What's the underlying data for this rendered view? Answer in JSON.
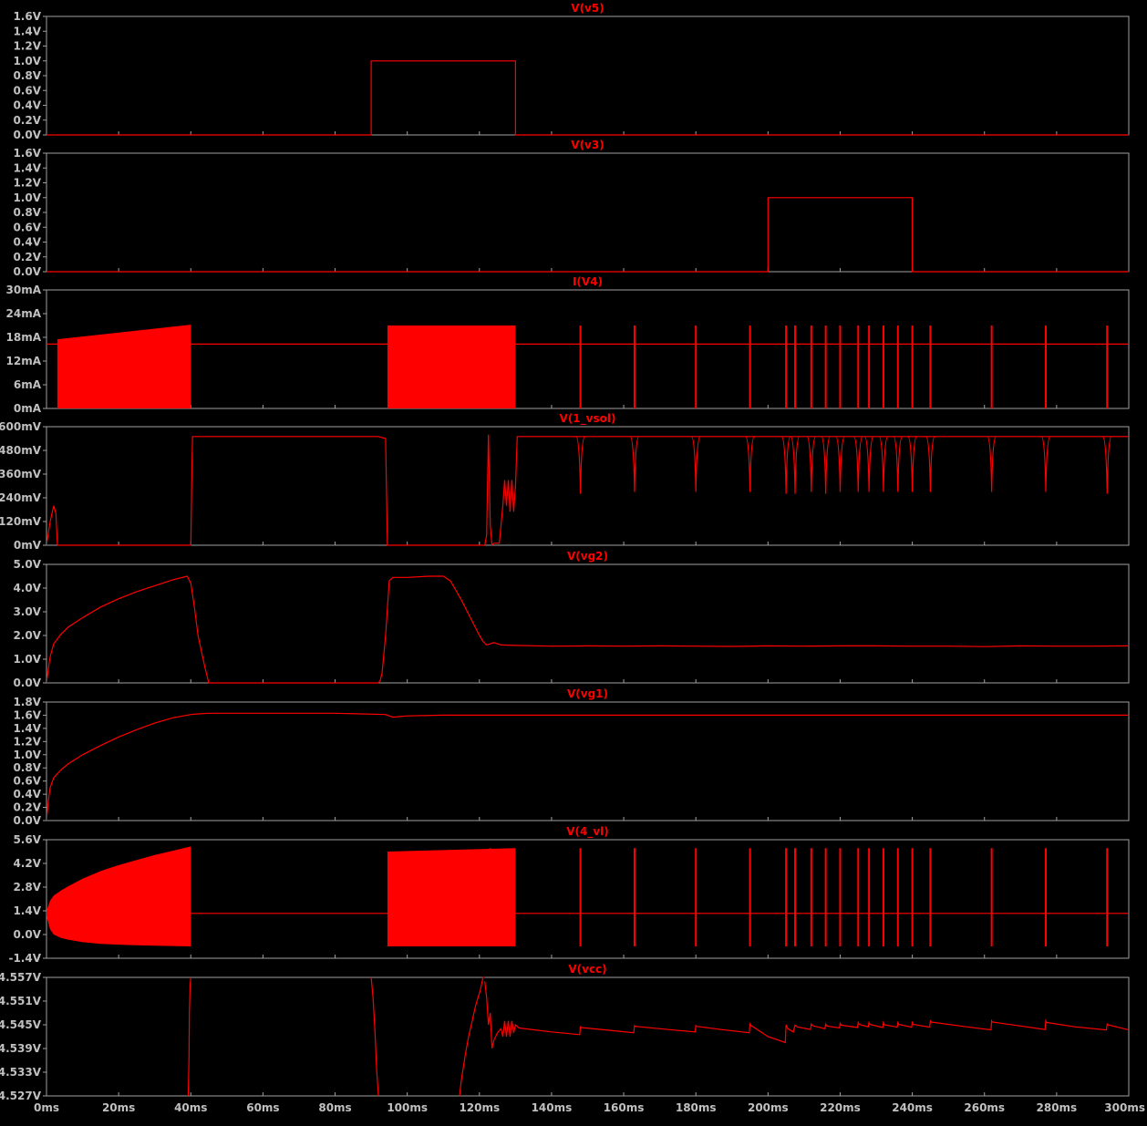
{
  "colors": {
    "background": "#000000",
    "frame": "#a0a0a0",
    "text": "#c0c0c0",
    "trace": "#ff0000"
  },
  "x_axis": {
    "range": [
      0,
      300
    ],
    "unit": "ms",
    "ticks": [
      0,
      20,
      40,
      60,
      80,
      100,
      120,
      140,
      160,
      180,
      200,
      220,
      240,
      260,
      280,
      300
    ],
    "tick_labels": [
      "0ms",
      "20ms",
      "40ms",
      "60ms",
      "80ms",
      "100ms",
      "120ms",
      "140ms",
      "160ms",
      "180ms",
      "200ms",
      "220ms",
      "240ms",
      "260ms",
      "280ms",
      "300ms"
    ]
  },
  "chart_data": [
    {
      "type": "line",
      "title": "V(v5)",
      "ylim": [
        0,
        1.6
      ],
      "yticks": [
        0,
        0.2,
        0.4,
        0.6,
        0.8,
        1.0,
        1.2,
        1.4,
        1.6
      ],
      "ytick_labels": [
        "0.0V",
        "0.2V",
        "0.4V",
        "0.6V",
        "0.8V",
        "1.0V",
        "1.2V",
        "1.4V",
        "1.6V"
      ],
      "series": [
        {
          "x": [
            0,
            90,
            90,
            130,
            130,
            300
          ],
          "y": [
            0,
            0,
            1.0,
            1.0,
            0,
            0
          ]
        }
      ]
    },
    {
      "type": "line",
      "title": "V(v3)",
      "ylim": [
        0,
        1.6
      ],
      "yticks": [
        0,
        0.2,
        0.4,
        0.6,
        0.8,
        1.0,
        1.2,
        1.4,
        1.6
      ],
      "ytick_labels": [
        "0.0V",
        "0.2V",
        "0.4V",
        "0.6V",
        "0.8V",
        "1.0V",
        "1.2V",
        "1.4V",
        "1.6V"
      ],
      "series": [
        {
          "x": [
            0,
            200,
            200,
            240,
            240,
            300
          ],
          "y": [
            0,
            0,
            1.0,
            1.0,
            0,
            0
          ]
        }
      ]
    },
    {
      "type": "line",
      "title": "I(V4)",
      "ylim": [
        0,
        30
      ],
      "yticks": [
        0,
        6,
        12,
        18,
        24,
        30
      ],
      "ytick_labels": [
        "0mA",
        "6mA",
        "12mA",
        "18mA",
        "24mA",
        "30mA"
      ],
      "series": [
        {
          "x": [
            0,
            300
          ],
          "y": [
            16.3,
            16.3
          ]
        }
      ],
      "bands": [
        {
          "x": [
            3,
            40
          ],
          "low": 0,
          "high_start": 17.5,
          "high_end": 21.2
        },
        {
          "x": [
            94.5,
            130
          ],
          "low": 0,
          "high_start": 21,
          "high_end": 21
        }
      ],
      "spikes": {
        "x": [
          123,
          148,
          163,
          180,
          195,
          205,
          207.5,
          212,
          216,
          220,
          225,
          228,
          232,
          236,
          240,
          245,
          262,
          277,
          294
        ],
        "low": 0,
        "high": 21
      }
    },
    {
      "type": "line",
      "title": "V(1_vsol)",
      "ylim": [
        0,
        600
      ],
      "yticks": [
        0,
        120,
        240,
        360,
        480,
        600
      ],
      "ytick_labels": [
        "0mV",
        "120mV",
        "240mV",
        "360mV",
        "480mV",
        "600mV"
      ],
      "series": [
        {
          "x": [
            0,
            1,
            2,
            2.6,
            3,
            3.1,
            40,
            40.3,
            40.5,
            92,
            94,
            94.5,
            121.5,
            122,
            122.5,
            123,
            123.5,
            124,
            125.5,
            126.5,
            127,
            127.5,
            128,
            128.5,
            129,
            129.5,
            130,
            130.5,
            300
          ],
          "y": [
            0,
            120,
            200,
            160,
            5,
            0,
            0,
            400,
            550,
            550,
            540,
            0,
            0,
            50,
            560,
            100,
            0,
            10,
            10,
            200,
            330,
            200,
            330,
            170,
            330,
            170,
            300,
            550,
            550
          ]
        }
      ],
      "dips": {
        "x": [
          148,
          163,
          180,
          195,
          205,
          207.5,
          212,
          216,
          220,
          225,
          228,
          232,
          236,
          240,
          245,
          262,
          277,
          294
        ],
        "base": 550,
        "min": [
          260,
          270,
          270,
          270,
          260,
          260,
          270,
          260,
          270,
          270,
          270,
          270,
          270,
          270,
          270,
          270,
          270,
          260
        ],
        "width": 1.2
      }
    },
    {
      "type": "line",
      "title": "V(vg2)",
      "ylim": [
        0,
        5.0
      ],
      "yticks": [
        0,
        1.0,
        2.0,
        3.0,
        4.0,
        5.0
      ],
      "ytick_labels": [
        "0.0V",
        "1.0V",
        "2.0V",
        "3.0V",
        "4.0V",
        "5.0V"
      ],
      "series": [
        {
          "x": [
            0,
            0.5,
            1,
            2,
            4,
            6,
            10,
            15,
            20,
            25,
            30,
            35,
            39,
            40,
            41,
            42,
            43,
            44,
            45,
            92,
            92.5,
            93,
            94,
            95,
            96,
            100,
            106,
            110,
            112,
            115,
            118,
            120,
            121,
            122,
            124,
            126,
            130,
            140,
            150,
            160,
            170,
            180,
            190,
            200,
            210,
            220,
            230,
            240,
            250,
            260,
            270,
            280,
            290,
            300
          ],
          "y": [
            0,
            0.6,
            1.1,
            1.65,
            2.05,
            2.35,
            2.75,
            3.2,
            3.55,
            3.85,
            4.1,
            4.35,
            4.5,
            4.2,
            3.2,
            2.0,
            1.3,
            0.6,
            0,
            0,
            0.1,
            0.4,
            2.0,
            4.3,
            4.45,
            4.45,
            4.5,
            4.5,
            4.3,
            3.5,
            2.6,
            2.0,
            1.75,
            1.6,
            1.7,
            1.6,
            1.58,
            1.55,
            1.56,
            1.55,
            1.56,
            1.55,
            1.54,
            1.56,
            1.55,
            1.56,
            1.56,
            1.55,
            1.55,
            1.53,
            1.56,
            1.55,
            1.55,
            1.56
          ]
        }
      ]
    },
    {
      "type": "line",
      "title": "V(vg1)",
      "ylim": [
        0,
        1.8
      ],
      "yticks": [
        0,
        0.2,
        0.4,
        0.6,
        0.8,
        1.0,
        1.2,
        1.4,
        1.6,
        1.8
      ],
      "ytick_labels": [
        "0.0V",
        "0.2V",
        "0.4V",
        "0.6V",
        "0.8V",
        "1.0V",
        "1.2V",
        "1.4V",
        "1.6V",
        "1.8V"
      ],
      "series": [
        {
          "x": [
            0,
            0.5,
            1,
            2,
            4,
            6,
            10,
            15,
            20,
            25,
            30,
            35,
            40,
            42,
            45,
            50,
            60,
            80,
            94,
            96,
            100,
            110,
            130,
            160,
            200,
            250,
            300
          ],
          "y": [
            0,
            0.3,
            0.5,
            0.65,
            0.77,
            0.86,
            1.0,
            1.14,
            1.27,
            1.38,
            1.48,
            1.56,
            1.61,
            1.62,
            1.63,
            1.63,
            1.63,
            1.63,
            1.61,
            1.57,
            1.59,
            1.6,
            1.6,
            1.6,
            1.6,
            1.6,
            1.6
          ]
        }
      ]
    },
    {
      "type": "line",
      "title": "V(4_vl)",
      "ylim": [
        -1.4,
        5.6
      ],
      "yticks": [
        -1.4,
        0.0,
        1.4,
        2.8,
        4.2,
        5.6
      ],
      "ytick_labels": [
        "-1.4V",
        "0.0V",
        "1.4V",
        "2.8V",
        "4.2V",
        "5.6V"
      ],
      "series": [
        {
          "x": [
            0,
            300
          ],
          "y": [
            1.25,
            1.25
          ]
        }
      ],
      "envelope": {
        "x": [
          0,
          1,
          2,
          4,
          6,
          10,
          15,
          20,
          25,
          30,
          35,
          40
        ],
        "high": [
          1.4,
          2.0,
          2.3,
          2.6,
          2.85,
          3.3,
          3.75,
          4.1,
          4.4,
          4.7,
          4.95,
          5.2
        ],
        "low": [
          1.1,
          0.3,
          0.0,
          -0.2,
          -0.3,
          -0.45,
          -0.55,
          -0.6,
          -0.63,
          -0.66,
          -0.68,
          -0.7
        ]
      },
      "bands": [
        {
          "x": [
            94.5,
            130
          ],
          "low": -0.7,
          "high_start": 4.9,
          "high_end": 5.1
        }
      ],
      "spikes": {
        "x": [
          123,
          148,
          163,
          180,
          195,
          205,
          207.5,
          212,
          216,
          220,
          225,
          228,
          232,
          236,
          240,
          245,
          262,
          277,
          294
        ],
        "low": -0.7,
        "high": 5.1
      }
    },
    {
      "type": "line",
      "title": "V(vcc)",
      "ylim": [
        4.527,
        4.557
      ],
      "yticks": [
        4.527,
        4.533,
        4.539,
        4.545,
        4.551,
        4.557
      ],
      "ytick_labels": [
        "4.527V",
        "4.533V",
        "4.539V",
        "4.545V",
        "4.551V",
        "4.557V"
      ],
      "series": [
        {
          "x": [
            39.3,
            39.5,
            39.6,
            39.8,
            40
          ],
          "y": [
            4.527,
            4.537,
            4.548,
            4.555,
            4.557
          ]
        },
        {
          "x": [
            90,
            90.5,
            91,
            91.5,
            92
          ],
          "y": [
            4.557,
            4.552,
            4.544,
            4.534,
            4.527
          ]
        },
        {
          "x": [
            114.5,
            115,
            116,
            117,
            118,
            119,
            120,
            120.3,
            121,
            121.5
          ],
          "y": [
            4.527,
            4.531,
            4.537,
            4.542,
            4.546,
            4.55,
            4.553,
            4.554,
            4.557,
            4.557
          ]
        },
        {
          "x": [
            121.5,
            122,
            122.5,
            123,
            123.5,
            124,
            125,
            126,
            126.5,
            127,
            127.5,
            128,
            128.5,
            129,
            129.5,
            130,
            131,
            140,
            147.8,
            148,
            148.2,
            155,
            162.8,
            163,
            163.2,
            170,
            179.8,
            180,
            180.2,
            187,
            194.8,
            195,
            195.2,
            200,
            204.8,
            205,
            205.5,
            207,
            207.5,
            208,
            211.8,
            212,
            212.3,
            215.8,
            216,
            216.3,
            219.8,
            220,
            220.3,
            224.8,
            225,
            225.3,
            227.8,
            228,
            228.3,
            231.8,
            232,
            232.3,
            235.8,
            236,
            236.3,
            239.8,
            240,
            240.3,
            244.8,
            245,
            245.3,
            255,
            261.8,
            262,
            262.2,
            270,
            276.8,
            277,
            277.2,
            285,
            293.8,
            294,
            294.2,
            300
          ],
          "y": [
            4.556,
            4.552,
            4.545,
            4.548,
            4.539,
            4.541,
            4.543,
            4.544,
            4.542,
            4.546,
            4.542,
            4.546,
            4.542,
            4.546,
            4.543,
            4.545,
            4.5442,
            4.5432,
            4.5425,
            4.5445,
            4.5443,
            4.5437,
            4.543,
            4.5448,
            4.5446,
            4.544,
            4.5432,
            4.5448,
            4.5446,
            4.5438,
            4.543,
            4.5452,
            4.5449,
            4.542,
            4.5405,
            4.545,
            4.544,
            4.5432,
            4.5449,
            4.5445,
            4.5438,
            4.5452,
            4.5448,
            4.544,
            4.5452,
            4.5447,
            4.5442,
            4.5454,
            4.5449,
            4.5443,
            4.5456,
            4.5451,
            4.5445,
            4.5456,
            4.5451,
            4.5443,
            4.5456,
            4.545,
            4.5444,
            4.5456,
            4.5451,
            4.5444,
            4.5456,
            4.5451,
            4.5444,
            4.546,
            4.5457,
            4.5445,
            4.5437,
            4.546,
            4.5457,
            4.5447,
            4.5438,
            4.546,
            4.5456,
            4.5445,
            4.5437,
            4.5452,
            4.545,
            4.5437
          ]
        }
      ]
    }
  ]
}
